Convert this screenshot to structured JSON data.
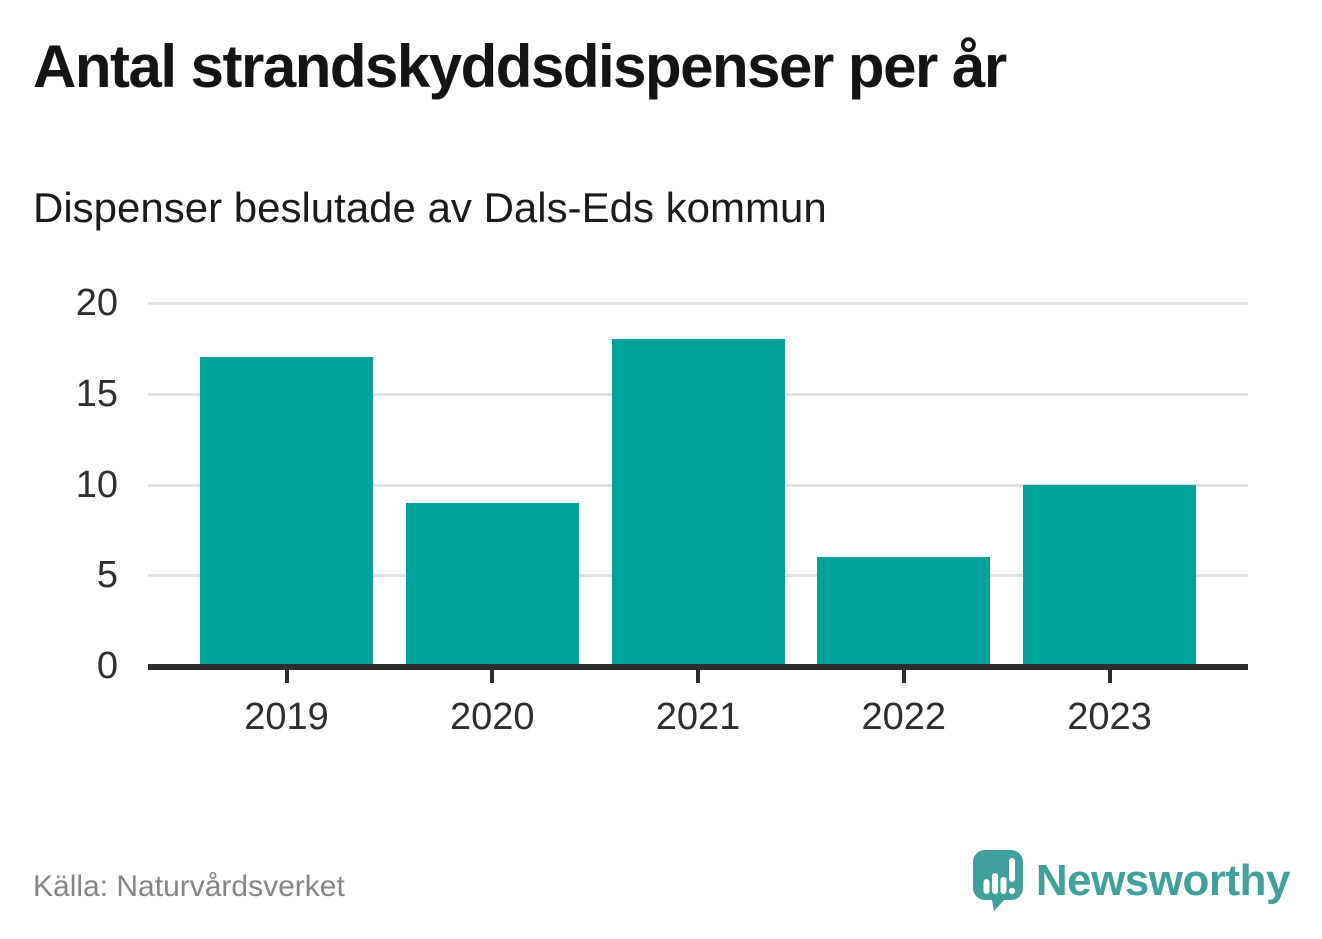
{
  "chart_data": {
    "type": "bar",
    "title": "Antal strandskyddsdispenser per år",
    "subtitle": "Dispenser beslutade av Dals-Eds kommun",
    "categories": [
      "2019",
      "2020",
      "2021",
      "2022",
      "2023"
    ],
    "values": [
      17,
      9,
      18,
      6,
      10
    ],
    "xlabel": "",
    "ylabel": "",
    "ylim": [
      0,
      20
    ],
    "yticks": [
      0,
      5,
      10,
      15,
      20
    ],
    "grid": "horizontal",
    "legend": "none",
    "bar_color": "#00a29a",
    "axis_color": "#2d2d2d",
    "gridline_color": "#e1e1e1"
  },
  "footer": {
    "source": "Källa: Naturvårdsverket",
    "logo_text": "Newsworthy",
    "brand_color": "#3fa09c"
  }
}
